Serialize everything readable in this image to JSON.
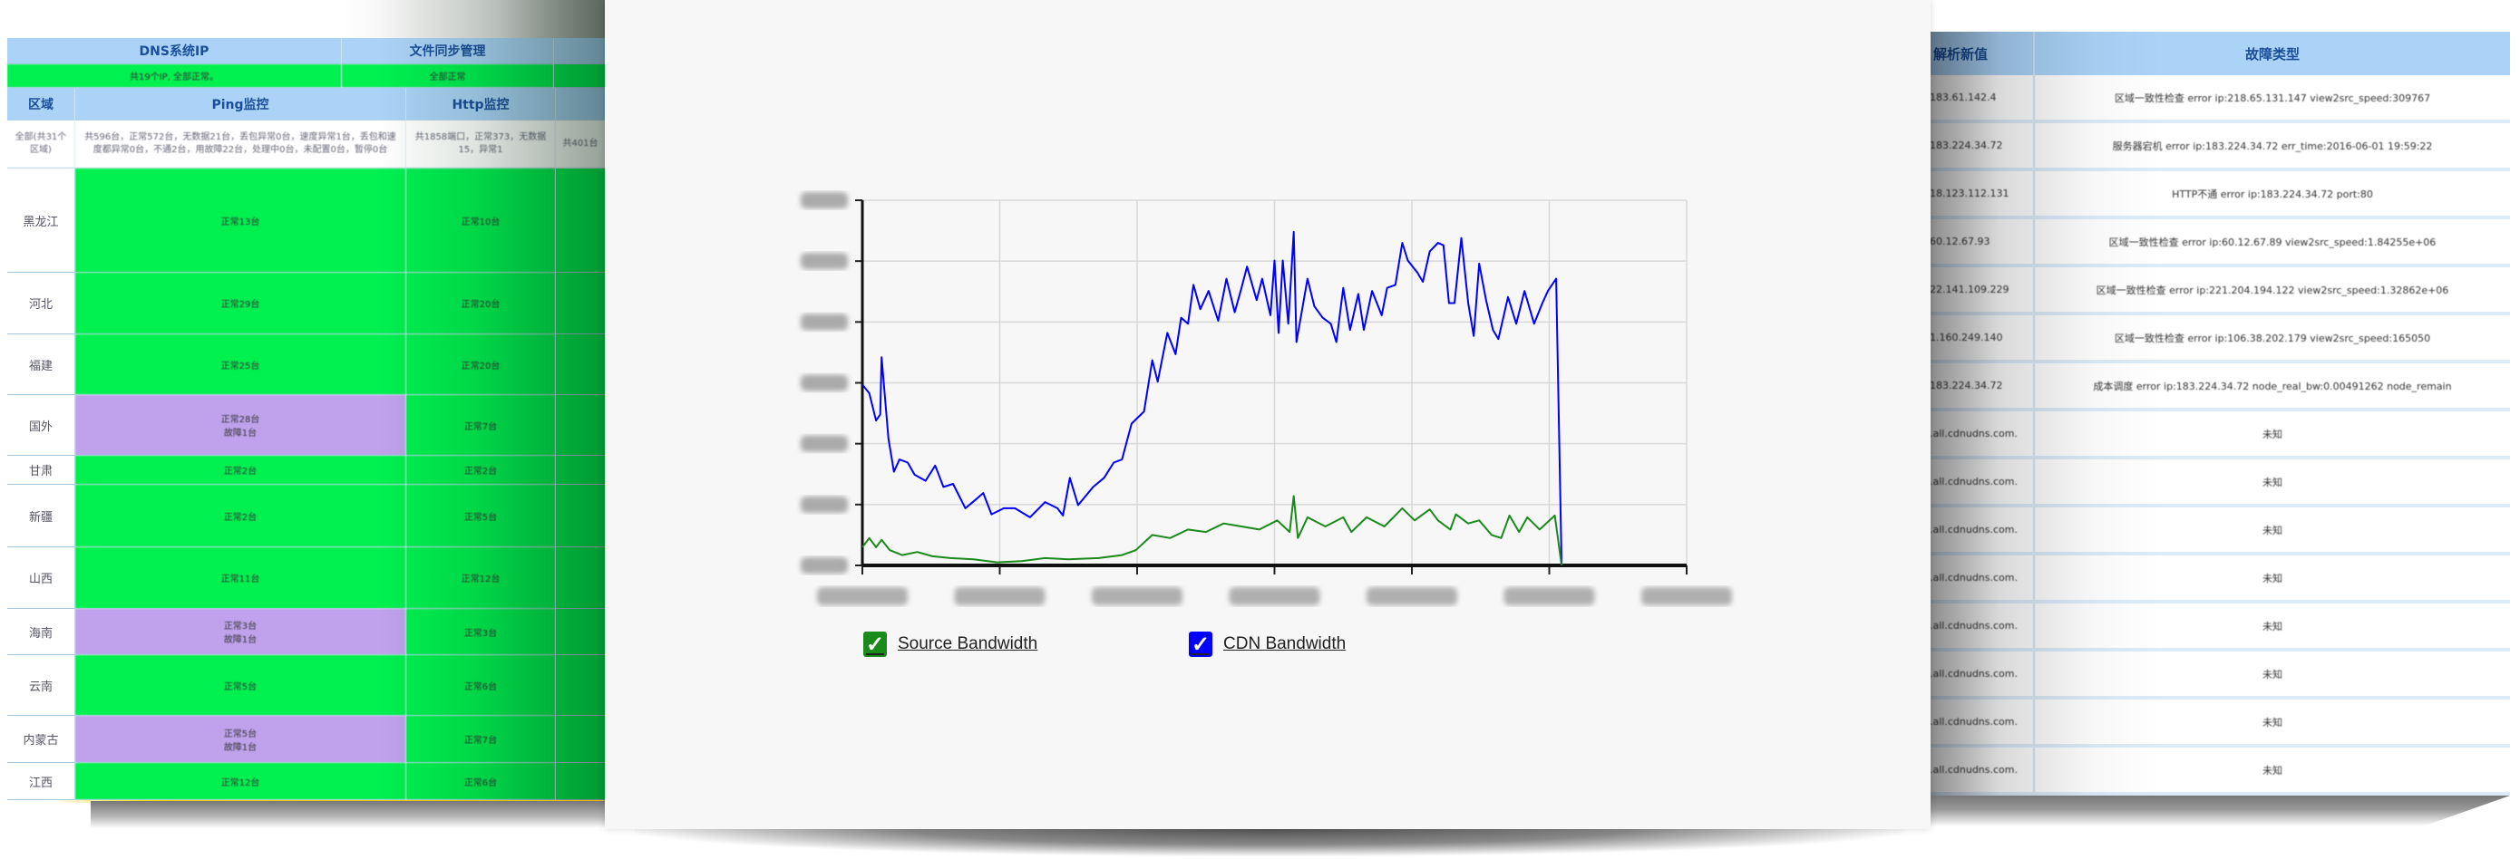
{
  "left_panel": {
    "top_headers": [
      "DNS系统IP",
      "文件同步管理"
    ],
    "top_status": [
      "共19个IP, 全部正常。",
      "全部正常"
    ],
    "column_headers": [
      "区域",
      "Ping监控",
      "Http监控"
    ],
    "summary_row": {
      "region": "全部(共31个区域)",
      "ping": "共596台，正常572台，无数据21台，丢包异常0台，速度异常1台，丢包和速度都异常0台，不通2台，用故障22台，处理中0台，未配置0台，暂停0台",
      "http": "共1858端口，正常373，无数据15，异常1",
      "extra": "共401台"
    },
    "rows": [
      {
        "region": "黑龙江",
        "ping": [
          "正常13台"
        ],
        "http": "正常10台",
        "ping_status": "normal"
      },
      {
        "region": "河北",
        "ping": [
          "正常29台"
        ],
        "http": "正常20台",
        "ping_status": "normal"
      },
      {
        "region": "福建",
        "ping": [
          "正常25台"
        ],
        "http": "正常20台",
        "ping_status": "normal"
      },
      {
        "region": "国外",
        "ping": [
          "正常28台",
          "故障1台"
        ],
        "http": "正常7台",
        "ping_status": "fault"
      },
      {
        "region": "甘肃",
        "ping": [
          "正常2台"
        ],
        "http": "正常2台",
        "ping_status": "normal"
      },
      {
        "region": "新疆",
        "ping": [
          "正常2台"
        ],
        "http": "正常5台",
        "ping_status": "normal"
      },
      {
        "region": "山西",
        "ping": [
          "正常11台"
        ],
        "http": "正常12台",
        "ping_status": "normal"
      },
      {
        "region": "海南",
        "ping": [
          "正常3台",
          "故障1台"
        ],
        "http": "正常3台",
        "ping_status": "fault"
      },
      {
        "region": "云南",
        "ping": [
          "正常5台"
        ],
        "http": "正常6台",
        "ping_status": "normal"
      },
      {
        "region": "内蒙古",
        "ping": [
          "正常5台",
          "故障1台"
        ],
        "http": "正常7台",
        "ping_status": "fault"
      },
      {
        "region": "江西",
        "ping": [
          "正常12台"
        ],
        "http": "正常6台",
        "ping_status": "normal"
      }
    ],
    "colors": {
      "header": "#aad3f7",
      "normal": "#00f050",
      "fault": "#c0a2ec",
      "header_text": "#1a4e9a"
    }
  },
  "center_panel": {
    "legend": [
      {
        "label": "Source Bandwidth",
        "checked": true,
        "color": "#1a8a1a"
      },
      {
        "label": "CDN Bandwidth",
        "checked": true,
        "color": "#0000ff"
      }
    ],
    "chart_data": {
      "type": "line",
      "title": "",
      "xlabel": "",
      "ylabel": "",
      "grid": true,
      "legend_position": "bottom",
      "x_tick_count": 7,
      "y_gridline_count": 7,
      "tick_labels_legible": false,
      "xlim": [
        0,
        6
      ],
      "ylim": [
        0,
        6
      ],
      "series": [
        {
          "name": "CDN Bandwidth",
          "color": "#0000ff",
          "x": [
            0,
            0.05,
            0.1,
            0.13,
            0.14,
            0.19,
            0.23,
            0.27,
            0.33,
            0.38,
            0.46,
            0.53,
            0.59,
            0.66,
            0.75,
            0.83,
            0.88,
            0.94,
            1.03,
            1.11,
            1.22,
            1.33,
            1.42,
            1.46,
            1.51,
            1.57,
            1.68,
            1.76,
            1.83,
            1.89,
            1.96,
            2.05,
            2.11,
            2.15,
            2.22,
            2.28,
            2.32,
            2.37,
            2.41,
            2.46,
            2.52,
            2.59,
            2.65,
            2.71,
            2.76,
            2.8,
            2.87,
            2.91,
            2.97,
            3.0,
            3.03,
            3.06,
            3.1,
            3.14,
            3.16,
            3.24,
            3.29,
            3.35,
            3.41,
            3.45,
            3.5,
            3.55,
            3.61,
            3.65,
            3.71,
            3.78,
            3.82,
            3.88,
            3.93,
            3.97,
            4.04,
            4.08,
            4.13,
            4.19,
            4.23,
            4.27,
            4.31,
            4.36,
            4.41,
            4.45,
            4.49,
            4.54,
            4.59,
            4.63,
            4.7,
            4.76,
            4.82,
            4.89,
            4.95,
            4.99,
            5.05,
            5.09
          ],
          "y": [
            2.97,
            2.83,
            2.38,
            2.48,
            3.42,
            2.08,
            1.54,
            1.74,
            1.69,
            1.49,
            1.39,
            1.64,
            1.29,
            1.34,
            0.94,
            1.09,
            1.19,
            0.84,
            0.94,
            0.94,
            0.79,
            1.04,
            0.94,
            0.82,
            1.44,
            0.99,
            1.29,
            1.44,
            1.69,
            1.74,
            2.33,
            2.53,
            3.37,
            3.02,
            3.82,
            3.47,
            4.07,
            3.97,
            4.61,
            4.21,
            4.51,
            4.02,
            4.71,
            4.16,
            4.56,
            4.91,
            4.36,
            4.71,
            4.11,
            5.01,
            3.82,
            5.01,
            3.97,
            5.48,
            3.67,
            4.71,
            4.26,
            4.07,
            3.97,
            3.67,
            4.56,
            3.87,
            4.46,
            3.87,
            4.51,
            4.11,
            4.56,
            4.61,
            5.3,
            5.01,
            4.81,
            4.66,
            5.16,
            5.3,
            5.26,
            4.31,
            4.31,
            5.38,
            4.31,
            3.77,
            4.96,
            4.36,
            3.87,
            3.72,
            4.41,
            3.97,
            4.51,
            3.97,
            4.31,
            4.51,
            4.71,
            0
          ]
        },
        {
          "name": "Source Bandwidth",
          "color": "#1a8a1a",
          "x": [
            0,
            0.05,
            0.1,
            0.14,
            0.2,
            0.29,
            0.4,
            0.51,
            0.64,
            0.81,
            0.98,
            1.16,
            1.33,
            1.5,
            1.72,
            1.89,
            1.99,
            2.11,
            2.24,
            2.37,
            2.5,
            2.63,
            2.76,
            2.89,
            3.02,
            3.11,
            3.14,
            3.17,
            3.24,
            3.37,
            3.5,
            3.56,
            3.67,
            3.8,
            3.93,
            4.02,
            4.13,
            4.19,
            4.28,
            4.32,
            4.41,
            4.49,
            4.58,
            4.65,
            4.71,
            4.78,
            4.84,
            4.93,
            5.04,
            5.09
          ],
          "y": [
            0.3,
            0.45,
            0.3,
            0.42,
            0.25,
            0.17,
            0.22,
            0.15,
            0.12,
            0.1,
            0.05,
            0.07,
            0.12,
            0.1,
            0.12,
            0.17,
            0.25,
            0.5,
            0.45,
            0.59,
            0.55,
            0.69,
            0.64,
            0.59,
            0.74,
            0.55,
            1.14,
            0.45,
            0.79,
            0.64,
            0.79,
            0.55,
            0.79,
            0.64,
            0.94,
            0.74,
            0.92,
            0.74,
            0.59,
            0.84,
            0.69,
            0.74,
            0.5,
            0.45,
            0.82,
            0.55,
            0.79,
            0.59,
            0.82,
            0
          ]
        }
      ]
    }
  },
  "right_panel": {
    "column_headers": [
      "解析新值",
      "故障类型"
    ],
    "rows": [
      {
        "value": "183.61.142.4",
        "fault": "区域一致性检查 error ip:218.65.131.147 view2src_speed:309767"
      },
      {
        "value": "183.224.34.72",
        "fault": "服务器宕机 error ip:183.224.34.72 err_time:2016-06-01 19:59:22"
      },
      {
        "value": "18.123.112.131",
        "fault": "HTTP不通 error ip:183.224.34.72 port:80"
      },
      {
        "value": "60.12.67.93",
        "fault": "区域一致性检查 error ip:60.12.67.89 view2src_speed:1.84255e+06"
      },
      {
        "value": "22.141.109.229",
        "fault": "区域一致性检查 error ip:221.204.194.122 view2src_speed:1.32862e+06"
      },
      {
        "value": "1.160.249.140",
        "fault": "区域一致性检查 error ip:106.38.202.179 view2src_speed:165050"
      },
      {
        "value": "183.224.34.72",
        "fault": "成本调度 error ip:183.224.34.72 node_real_bw:0.00491262 node_remain"
      },
      {
        "value": ".all.cdnudns.com.",
        "fault": "未知"
      },
      {
        "value": ".all.cdnudns.com.",
        "fault": "未知"
      },
      {
        "value": ".all.cdnudns.com.",
        "fault": "未知"
      },
      {
        "value": ".all.cdnudns.com.",
        "fault": "未知"
      },
      {
        "value": ".all.cdnudns.com.",
        "fault": "未知"
      },
      {
        "value": ".all.cdnudns.com.",
        "fault": "未知"
      },
      {
        "value": ".all.cdnudns.com.",
        "fault": "未知"
      },
      {
        "value": ".all.cdnudns.com.",
        "fault": "未知"
      }
    ]
  }
}
